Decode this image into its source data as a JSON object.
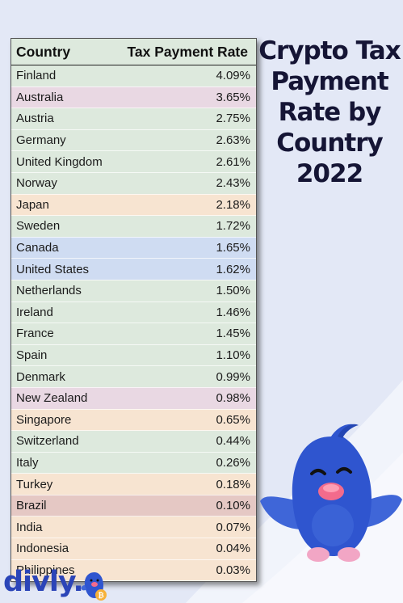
{
  "title_lines": [
    "Crypto Tax",
    "Payment",
    "Rate by",
    "Country",
    "2022"
  ],
  "brand": "divly.",
  "colors": {
    "background": "#e3e8f6",
    "green": "#dde9dd",
    "pink": "#e9d8e3",
    "orange": "#f7e4d1",
    "blue": "#cfdcf2",
    "brown": "#e5c8c4",
    "title": "#151535",
    "brand": "#2b45b8"
  },
  "mascot_icon": "blue-bird-mascot-icon",
  "chart_data": {
    "type": "table",
    "columns": [
      "Country",
      "Tax Payment Rate"
    ],
    "rows": [
      {
        "country": "Finland",
        "rate": "4.09%",
        "color": "green"
      },
      {
        "country": "Australia",
        "rate": "3.65%",
        "color": "pink"
      },
      {
        "country": "Austria",
        "rate": "2.75%",
        "color": "green"
      },
      {
        "country": "Germany",
        "rate": "2.63%",
        "color": "green"
      },
      {
        "country": "United Kingdom",
        "rate": "2.61%",
        "color": "green"
      },
      {
        "country": "Norway",
        "rate": "2.43%",
        "color": "green"
      },
      {
        "country": "Japan",
        "rate": "2.18%",
        "color": "orange"
      },
      {
        "country": "Sweden",
        "rate": "1.72%",
        "color": "green"
      },
      {
        "country": "Canada",
        "rate": "1.65%",
        "color": "blue"
      },
      {
        "country": "United States",
        "rate": "1.62%",
        "color": "blue"
      },
      {
        "country": "Netherlands",
        "rate": "1.50%",
        "color": "green"
      },
      {
        "country": "Ireland",
        "rate": "1.46%",
        "color": "green"
      },
      {
        "country": "France",
        "rate": "1.45%",
        "color": "green"
      },
      {
        "country": "Spain",
        "rate": "1.10%",
        "color": "green"
      },
      {
        "country": "Denmark",
        "rate": "0.99%",
        "color": "green"
      },
      {
        "country": "New Zealand",
        "rate": "0.98%",
        "color": "pink"
      },
      {
        "country": "Singapore",
        "rate": "0.65%",
        "color": "orange"
      },
      {
        "country": "Switzerland",
        "rate": "0.44%",
        "color": "green"
      },
      {
        "country": "Italy",
        "rate": "0.26%",
        "color": "green"
      },
      {
        "country": "Turkey",
        "rate": "0.18%",
        "color": "orange"
      },
      {
        "country": "Brazil",
        "rate": "0.10%",
        "color": "brown"
      },
      {
        "country": "India",
        "rate": "0.07%",
        "color": "orange"
      },
      {
        "country": "Indonesia",
        "rate": "0.04%",
        "color": "orange"
      },
      {
        "country": "Philippines",
        "rate": "0.03%",
        "color": "orange"
      }
    ]
  }
}
